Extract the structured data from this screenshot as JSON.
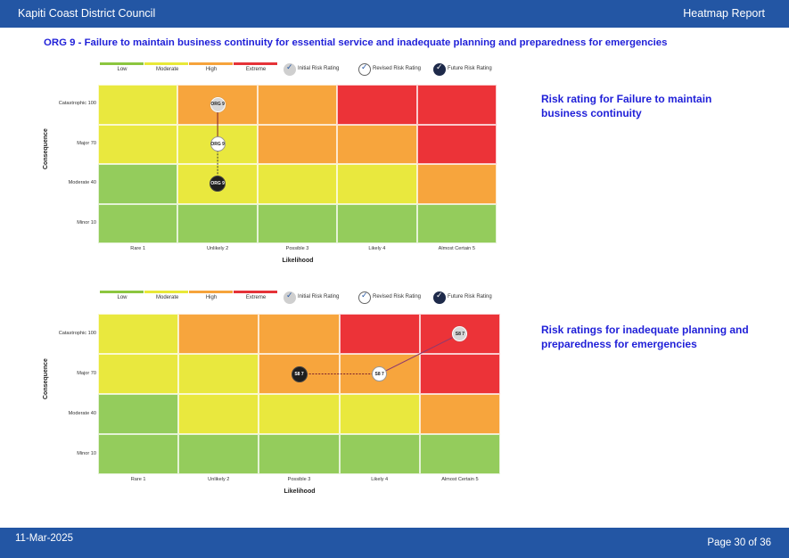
{
  "header": {
    "org": "Kapiti Coast District Council",
    "report": "Heatmap Report"
  },
  "title": "ORG 9 - Failure to maintain business continuity for essential service and inadequate planning and preparedness for emergencies",
  "legend": {
    "levels": [
      {
        "label": "Low",
        "color": "#8cc63f"
      },
      {
        "label": "Moderate",
        "color": "#e8e838"
      },
      {
        "label": "High",
        "color": "#f6a33b"
      },
      {
        "label": "Extreme",
        "color": "#e53238"
      }
    ],
    "ratings": [
      "Initial Risk Rating",
      "Revised Risk Rating",
      "Future Risk Rating"
    ]
  },
  "colors": {
    "low": "#94cc5c",
    "moderate": "#e9e83e",
    "high": "#f7a53d",
    "extreme": "#ec3338"
  },
  "heatmap": {
    "consequence": [
      "Catastrophic 100",
      "Major 70",
      "Moderate 40",
      "Minor 10"
    ],
    "likelihood": [
      "Rare 1",
      "Unlikely 2",
      "Possible 3",
      "Likely 4",
      "Almost Certain 5"
    ],
    "x_title": "Likelihood",
    "y_title": "Consequence",
    "matrix": [
      [
        "moderate",
        "high",
        "high",
        "extreme",
        "extreme"
      ],
      [
        "moderate",
        "moderate",
        "high",
        "high",
        "extreme"
      ],
      [
        "low",
        "moderate",
        "moderate",
        "moderate",
        "high"
      ],
      [
        "low",
        "low",
        "low",
        "low",
        "low"
      ]
    ]
  },
  "charts": [
    {
      "heading": "Risk rating for Failure to maintain business continuity",
      "markers": [
        {
          "type": "initial",
          "label": "ORG 9",
          "likelihood": 2,
          "consequence": "Catastrophic 100"
        },
        {
          "type": "revised",
          "label": "ORG 9",
          "likelihood": 2,
          "consequence": "Major 70"
        },
        {
          "type": "future",
          "label": "ORG 9",
          "likelihood": 2,
          "consequence": "Moderate 40"
        }
      ]
    },
    {
      "heading": "Risk ratings for inadequate planning and preparedness for emergencies",
      "markers": [
        {
          "type": "initial",
          "label": "S8 7",
          "likelihood": 5,
          "consequence": "Catastrophic 100"
        },
        {
          "type": "revised",
          "label": "S8 7",
          "likelihood": 4,
          "consequence": "Major 70"
        },
        {
          "type": "future",
          "label": "S8 7",
          "likelihood": 3,
          "consequence": "Major 70"
        }
      ]
    }
  ],
  "footer": {
    "date": "11-Mar-2025",
    "page": "Page 30 of  36"
  }
}
